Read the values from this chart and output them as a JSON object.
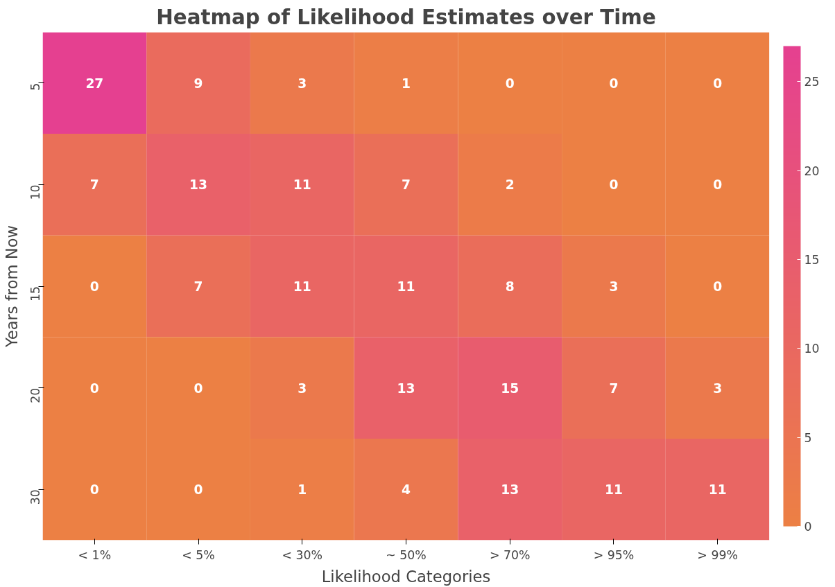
{
  "chart_data": {
    "type": "heatmap",
    "title": "Heatmap of Likelihood Estimates over Time",
    "xlabel": "Likelihood Categories",
    "ylabel": "Years from Now",
    "categories": [
      "< 1%",
      "< 5%",
      "< 30%",
      "~ 50%",
      "> 70%",
      "> 95%",
      "> 99%"
    ],
    "y_categories": [
      "5",
      "10",
      "15",
      "20",
      "30"
    ],
    "cells": [
      [
        27,
        9,
        3,
        1,
        0,
        0,
        0
      ],
      [
        7,
        13,
        11,
        7,
        2,
        0,
        0
      ],
      [
        0,
        7,
        11,
        11,
        8,
        3,
        0
      ],
      [
        0,
        0,
        3,
        13,
        15,
        7,
        3
      ],
      [
        0,
        0,
        1,
        4,
        13,
        11,
        11
      ]
    ],
    "clim": [
      0,
      27
    ],
    "cticks": [
      0,
      5,
      10,
      15,
      20,
      25
    ],
    "data_labels": true
  }
}
